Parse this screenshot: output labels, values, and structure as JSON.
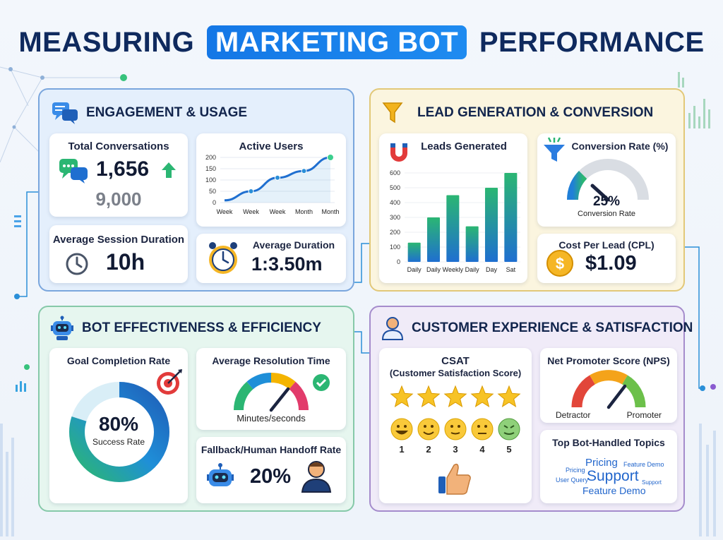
{
  "title": {
    "part1": "MEASURING",
    "highlight": "MARKETING BOT",
    "part2": "PERFORMANCE"
  },
  "engagement": {
    "heading": "ENGAGEMENT & USAGE",
    "total_conversations": {
      "label": "Total Conversations",
      "value": "1,656",
      "secondary": "9,000"
    },
    "active_users": {
      "label": "Active Users",
      "chart_data": {
        "type": "line",
        "categories": [
          "Week",
          "Week",
          "Week",
          "Month",
          "Month"
        ],
        "values": [
          10,
          50,
          110,
          140,
          200
        ],
        "yticks": [
          "200",
          "150",
          "100",
          "50",
          "0"
        ],
        "ylim": [
          0,
          200
        ]
      }
    },
    "avg_session_duration": {
      "label": "Average Session Duration",
      "value": "10h"
    },
    "avg_duration": {
      "label": "Average Duration",
      "value": "1:3.50m"
    }
  },
  "lead": {
    "heading": "LEAD GENERATION & CONVERSION",
    "leads_generated": {
      "label": "Leads Generated",
      "chart_data": {
        "type": "bar",
        "categories": [
          "Daily",
          "Daily",
          "Weekly",
          "Daily",
          "Day",
          "Sat"
        ],
        "values": [
          130,
          300,
          450,
          240,
          500,
          600
        ],
        "yticks": [
          "600",
          "500",
          "400",
          "300",
          "200",
          "100",
          "0"
        ],
        "ylim": [
          0,
          600
        ]
      }
    },
    "conversion_rate": {
      "label": "Conversion Rate (%)",
      "value": "25%",
      "sub": "Conversion Rate",
      "fraction": 0.25
    },
    "cpl": {
      "label": "Cost Per Lead (CPL)",
      "value": "$1.09"
    }
  },
  "bot": {
    "heading": "BOT EFFECTIVENESS & EFFICIENCY",
    "goal_completion": {
      "label": "Goal Completion Rate",
      "value": "80%",
      "sub": "Success Rate",
      "fraction": 0.8
    },
    "resolution_time": {
      "label": "Average Resolution Time",
      "sub": "Minutes/seconds"
    },
    "handoff": {
      "label": "Fallback/Human Handoff Rate",
      "value": "20%"
    }
  },
  "cx": {
    "heading": "CUSTOMER EXPERIENCE & SATISFACTION",
    "csat": {
      "label": "CSAT",
      "sublabel": "(Customer Satisfaction Score)",
      "stars": 5,
      "scale": [
        "1",
        "2",
        "3",
        "4",
        "5"
      ]
    },
    "nps": {
      "label": "Net Promoter Score (NPS)",
      "left": "Detractor",
      "right": "Promoter"
    },
    "topics": {
      "label": "Top Bot-Handled Topics",
      "words": [
        "Pricing",
        "Feature Demo",
        "Pricing",
        "Support",
        "User Query",
        "Support",
        "Feature Demo"
      ]
    }
  },
  "colors": {
    "navy": "#0f2a5e",
    "accent": "#1477e6",
    "green": "#2bb673",
    "gold": "#f4b400"
  }
}
